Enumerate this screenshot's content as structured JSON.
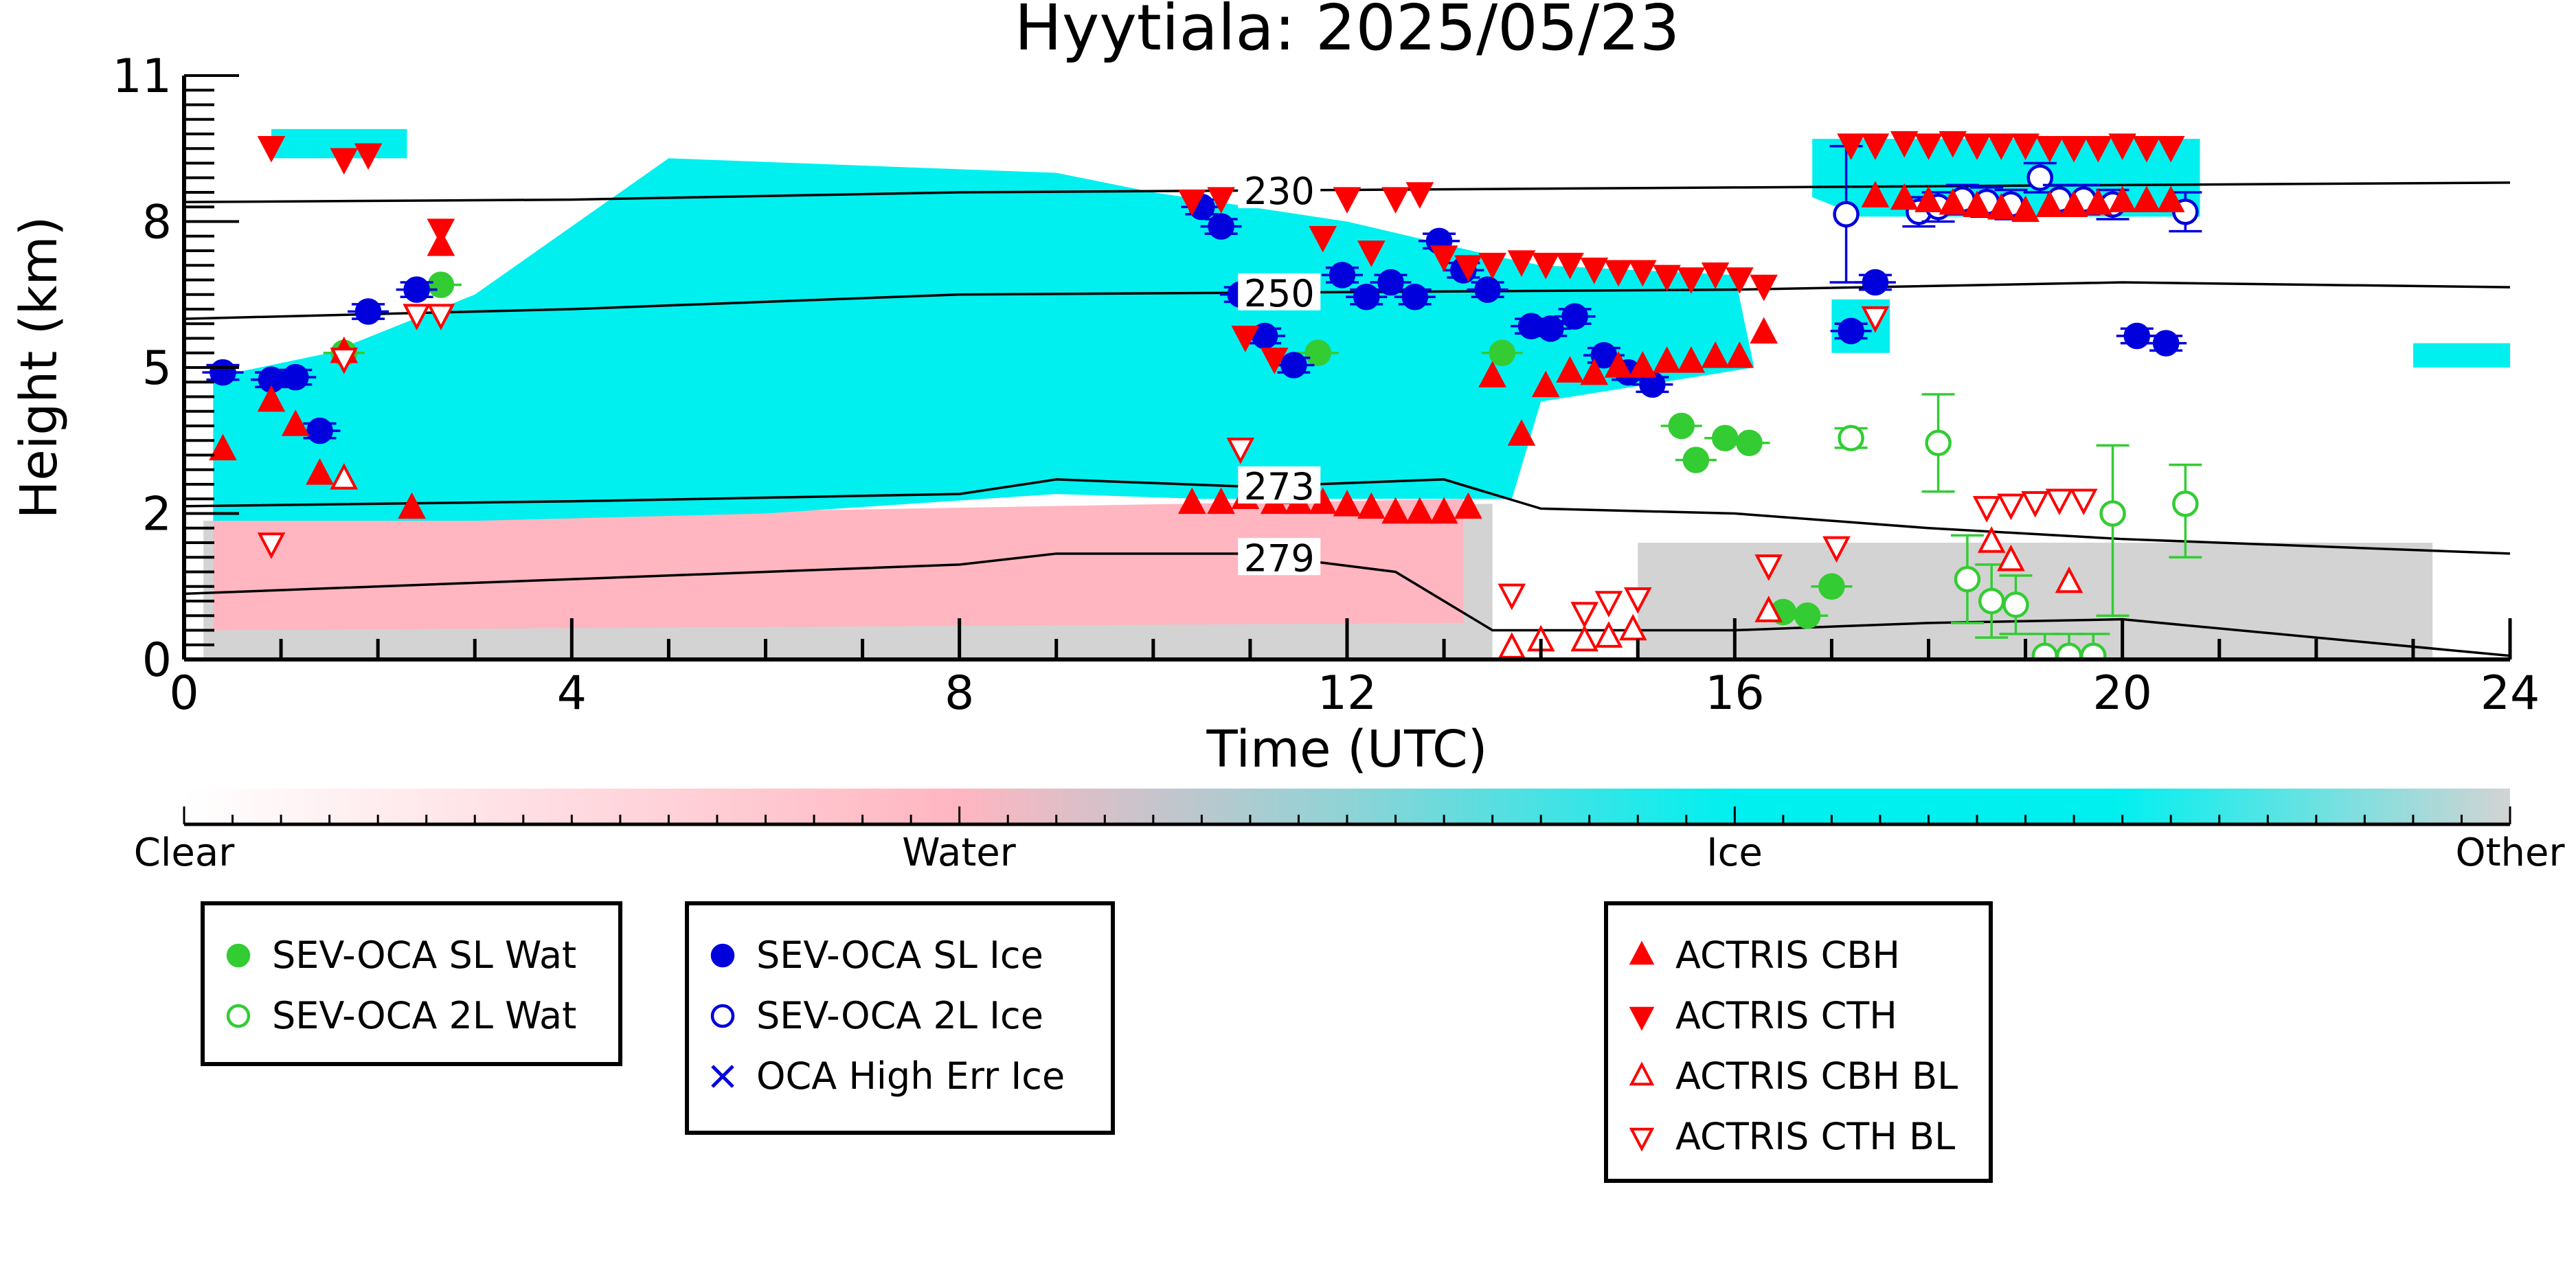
{
  "chart_data": {
    "type": "scatter",
    "title": "Hyytiala: 2025/05/23",
    "xlabel": "Time (UTC)",
    "ylabel": "Height (km)",
    "xlim": [
      0,
      24
    ],
    "ylim": [
      0,
      11
    ],
    "x_ticks": [
      0,
      4,
      8,
      12,
      16,
      20,
      24
    ],
    "y_ticks": [
      0,
      2,
      5,
      8,
      11
    ],
    "y_tick_labels": [
      "0",
      "2",
      "5",
      "8",
      "11"
    ],
    "colorbar": {
      "labels": [
        "Clear",
        "Water",
        "Ice",
        "Other"
      ],
      "colors": [
        "#ffffff",
        "#ffb6c1",
        "#00f0f0",
        "#d3d3d3"
      ]
    },
    "temperature_contours": [
      {
        "label": "230",
        "x": [
          0,
          4,
          8,
          12,
          16,
          20,
          24
        ],
        "y": [
          8.4,
          8.45,
          8.6,
          8.65,
          8.7,
          8.75,
          8.8
        ]
      },
      {
        "label": "250",
        "x": [
          0,
          4,
          8,
          12,
          16,
          20,
          24
        ],
        "y": [
          6.0,
          6.2,
          6.5,
          6.55,
          6.6,
          6.75,
          6.65
        ]
      },
      {
        "label": "273",
        "x": [
          0,
          4,
          8,
          9,
          11,
          13,
          14,
          16,
          18,
          20,
          24
        ],
        "y": [
          2.15,
          2.25,
          2.4,
          2.7,
          2.55,
          2.7,
          2.1,
          2.0,
          1.8,
          1.65,
          1.45
        ]
      },
      {
        "label": "279",
        "x": [
          0,
          4,
          8,
          9,
          11,
          12.5,
          13.5,
          16,
          18,
          20,
          24
        ],
        "y": [
          0.9,
          1.1,
          1.3,
          1.45,
          1.45,
          1.2,
          0.4,
          0.4,
          0.5,
          0.55,
          0.05
        ]
      }
    ],
    "cloud_regions": [
      {
        "type": "Other",
        "x": [
          0.2,
          0.2,
          13.5,
          13.5
        ],
        "y": [
          0,
          1.9,
          2.2,
          0
        ]
      },
      {
        "type": "Other",
        "x": [
          15.0,
          15.0,
          23.2,
          23.2
        ],
        "y": [
          0,
          1.6,
          1.6,
          0
        ]
      },
      {
        "type": "Water",
        "x": [
          0.3,
          0.3,
          13.2,
          13.2
        ],
        "y": [
          0.4,
          1.9,
          2.3,
          0.5
        ]
      },
      {
        "type": "Ice",
        "x": [
          0.3,
          0.3,
          1.5,
          3.0,
          5.0,
          9.0,
          10.0,
          11.0,
          12.0,
          13.5,
          14.0,
          16.0,
          16.2,
          14.0,
          13.7,
          10.5,
          9.0,
          6.0,
          3.0,
          1.0
        ],
        "y": [
          1.9,
          4.8,
          5.3,
          6.5,
          9.3,
          9.0,
          8.6,
          8.3,
          8.0,
          7.3,
          7.1,
          6.9,
          5.0,
          4.3,
          2.3,
          2.3,
          2.4,
          2.0,
          1.9,
          1.9
        ]
      },
      {
        "type": "Ice",
        "x": [
          0.9,
          0.9,
          2.3,
          2.3
        ],
        "y": [
          9.3,
          9.9,
          9.9,
          9.3
        ]
      },
      {
        "type": "Ice",
        "x": [
          16.8,
          16.8,
          20.8,
          20.8,
          17.3
        ],
        "y": [
          8.5,
          9.7,
          9.7,
          8.1,
          8.1
        ]
      },
      {
        "type": "Ice",
        "x": [
          17.0,
          17.0,
          17.6,
          17.6
        ],
        "y": [
          5.3,
          6.4,
          6.4,
          5.3
        ]
      },
      {
        "type": "Ice",
        "x": [
          23.0,
          23.0,
          24.0,
          24.0
        ],
        "y": [
          5.0,
          5.5,
          5.5,
          5.0
        ]
      }
    ],
    "series": [
      {
        "name": "SEV-OCA SL Wat",
        "marker": "circle",
        "filled": true,
        "color": "#33cc33",
        "x": [
          1.65,
          2.65,
          11.7,
          13.6,
          15.45,
          15.6,
          15.9,
          16.15,
          16.5,
          16.75,
          17.0
        ],
        "y": [
          5.3,
          6.7,
          5.3,
          5.3,
          3.8,
          3.1,
          3.55,
          3.45,
          0.65,
          0.6,
          1.0
        ]
      },
      {
        "name": "SEV-OCA 2L Wat",
        "marker": "circle",
        "filled": false,
        "color": "#33cc33",
        "x": [
          17.2,
          18.1,
          18.4,
          18.65,
          18.9,
          19.2,
          19.45,
          19.7,
          19.9,
          20.65
        ],
        "y": [
          3.55,
          3.45,
          1.1,
          0.8,
          0.75,
          0.05,
          0.05,
          0.05,
          2.0,
          2.2
        ],
        "err": [
          0.2,
          1.0,
          0.6,
          0.5,
          0.4,
          0.3,
          0.3,
          0.3,
          1.4,
          0.8
        ]
      },
      {
        "name": "SEV-OCA SL Ice",
        "marker": "circle",
        "filled": true,
        "color": "#0000dd",
        "x": [
          0.4,
          0.9,
          1.15,
          1.4,
          1.9,
          2.4,
          10.5,
          10.7,
          10.9,
          11.15,
          11.45,
          11.95,
          12.2,
          12.45,
          12.7,
          12.95,
          13.2,
          13.45,
          13.9,
          14.1,
          14.35,
          14.65,
          14.9,
          15.15,
          17.45,
          17.2,
          20.15,
          20.45
        ],
        "y": [
          4.9,
          4.75,
          4.8,
          3.7,
          6.15,
          6.6,
          8.3,
          7.9,
          6.5,
          5.65,
          5.05,
          6.9,
          6.45,
          6.75,
          6.45,
          7.6,
          7.0,
          6.6,
          5.85,
          5.8,
          6.05,
          5.25,
          4.9,
          4.65,
          6.75,
          5.75,
          5.65,
          5.5
        ],
        "err": [
          0.15,
          0.15,
          0.15,
          0.15,
          0.15,
          0.15,
          0.15,
          0.15,
          0.15,
          0.15,
          0.15,
          0.15,
          0.15,
          0.15,
          0.15,
          0.15,
          0.15,
          0.15,
          0.15,
          0.15,
          0.15,
          0.15,
          0.15,
          0.15,
          0.15,
          0.15,
          0.15,
          0.15
        ]
      },
      {
        "name": "SEV-OCA 2L Ice",
        "marker": "circle",
        "filled": false,
        "color": "#0000dd",
        "x": [
          17.15,
          17.9,
          18.1,
          18.35,
          18.6,
          18.85,
          19.15,
          19.35,
          19.6,
          19.9,
          20.65
        ],
        "y": [
          8.15,
          8.2,
          8.3,
          8.45,
          8.4,
          8.35,
          8.9,
          8.45,
          8.45,
          8.35,
          8.2
        ],
        "err": [
          1.4,
          0.3,
          0.3,
          0.3,
          0.3,
          0.3,
          0.3,
          0.3,
          0.3,
          0.3,
          0.4
        ]
      },
      {
        "name": "OCA High Err Ice",
        "marker": "x",
        "filled": false,
        "color": "#0000dd",
        "x": [],
        "y": []
      },
      {
        "name": "ACTRIS CBH",
        "marker": "triangle-up",
        "filled": true,
        "color": "#ff0000",
        "x": [
          0.4,
          0.9,
          1.15,
          1.4,
          1.65,
          2.35,
          2.65,
          10.4,
          10.7,
          10.95,
          11.25,
          11.5,
          11.75,
          12.0,
          12.25,
          12.5,
          12.75,
          13.0,
          13.25,
          13.5,
          13.8,
          14.05,
          14.3,
          14.55,
          14.8,
          15.05,
          15.3,
          15.55,
          15.8,
          16.05,
          16.3,
          17.45,
          17.75,
          18.0,
          18.25,
          18.5,
          18.75,
          19.0,
          19.25,
          19.5,
          19.75,
          20.0,
          20.25,
          20.5
        ],
        "y": [
          3.3,
          4.3,
          3.8,
          2.8,
          5.3,
          2.1,
          7.5,
          2.2,
          2.2,
          2.3,
          2.2,
          2.2,
          2.2,
          2.15,
          2.1,
          2.0,
          2.0,
          2.0,
          2.1,
          4.8,
          3.6,
          4.6,
          4.9,
          4.85,
          5.0,
          5.0,
          5.1,
          5.1,
          5.2,
          5.2,
          5.7,
          8.5,
          8.45,
          8.4,
          8.35,
          8.3,
          8.25,
          8.2,
          8.3,
          8.3,
          8.35,
          8.4,
          8.4,
          8.4
        ]
      },
      {
        "name": "ACTRIS CTH",
        "marker": "triangle-down",
        "filled": true,
        "color": "#ff0000",
        "x": [
          0.9,
          1.65,
          1.9,
          2.65,
          10.4,
          10.7,
          10.95,
          11.25,
          11.75,
          12.0,
          12.25,
          12.5,
          12.75,
          13.0,
          13.25,
          13.5,
          13.8,
          14.05,
          14.3,
          14.55,
          14.8,
          15.05,
          15.3,
          15.55,
          15.8,
          16.05,
          16.3,
          17.2,
          17.45,
          17.75,
          18.0,
          18.25,
          18.5,
          18.75,
          19.0,
          19.25,
          19.5,
          19.75,
          20.0,
          20.25,
          20.5
        ],
        "y": [
          9.55,
          9.3,
          9.4,
          7.85,
          8.45,
          8.5,
          5.65,
          5.2,
          7.7,
          8.5,
          7.4,
          8.5,
          8.6,
          7.3,
          7.1,
          7.15,
          7.2,
          7.15,
          7.15,
          7.05,
          7.0,
          7.0,
          6.9,
          6.85,
          6.95,
          6.85,
          6.7,
          9.6,
          9.6,
          9.65,
          9.6,
          9.65,
          9.6,
          9.6,
          9.6,
          9.55,
          9.55,
          9.55,
          9.6,
          9.55,
          9.55
        ]
      },
      {
        "name": "ACTRIS CBH BL",
        "marker": "triangle-up",
        "filled": false,
        "color": "#ff0000",
        "x": [
          1.65,
          11.45,
          13.7,
          14.0,
          14.45,
          14.7,
          14.95,
          16.35,
          18.65,
          18.85,
          19.45
        ],
        "y": [
          2.7,
          2.4,
          0.15,
          0.25,
          0.25,
          0.3,
          0.4,
          0.65,
          1.6,
          1.35,
          1.05
        ],
        "err": [
          0,
          0,
          0,
          0,
          0,
          0,
          0,
          0,
          0,
          0,
          0
        ]
      },
      {
        "name": "ACTRIS CTH BL",
        "marker": "triangle-down",
        "filled": false,
        "color": "#ff0000",
        "x": [
          0.9,
          1.65,
          2.4,
          2.65,
          10.9,
          13.7,
          14.45,
          14.7,
          15.0,
          16.35,
          18.6,
          18.85,
          19.1,
          19.35,
          19.6,
          17.05,
          17.45
        ],
        "y": [
          1.6,
          5.2,
          6.1,
          6.1,
          3.35,
          0.9,
          0.65,
          0.8,
          0.85,
          1.3,
          2.15,
          2.2,
          2.25,
          2.3,
          2.3,
          1.55,
          6.05
        ]
      }
    ]
  },
  "legends": [
    {
      "items": [
        {
          "label": "SEV-OCA SL Wat",
          "marker": "circle",
          "filled": true,
          "color": "#33cc33"
        },
        {
          "label": "SEV-OCA 2L Wat",
          "marker": "circle",
          "filled": false,
          "color": "#33cc33"
        }
      ]
    },
    {
      "items": [
        {
          "label": "SEV-OCA SL Ice",
          "marker": "circle",
          "filled": true,
          "color": "#0000dd"
        },
        {
          "label": "SEV-OCA 2L Ice",
          "marker": "circle",
          "filled": false,
          "color": "#0000dd"
        },
        {
          "label": "OCA High Err Ice",
          "marker": "x",
          "filled": false,
          "color": "#0000dd"
        }
      ]
    },
    {
      "items": [
        {
          "label": "ACTRIS CBH",
          "marker": "triangle-up",
          "filled": true,
          "color": "#ff0000"
        },
        {
          "label": "ACTRIS CTH",
          "marker": "triangle-down",
          "filled": true,
          "color": "#ff0000"
        },
        {
          "label": "ACTRIS CBH BL",
          "marker": "triangle-up",
          "filled": false,
          "color": "#ff0000"
        },
        {
          "label": "ACTRIS CTH BL",
          "marker": "triangle-down",
          "filled": false,
          "color": "#ff0000"
        }
      ]
    }
  ]
}
